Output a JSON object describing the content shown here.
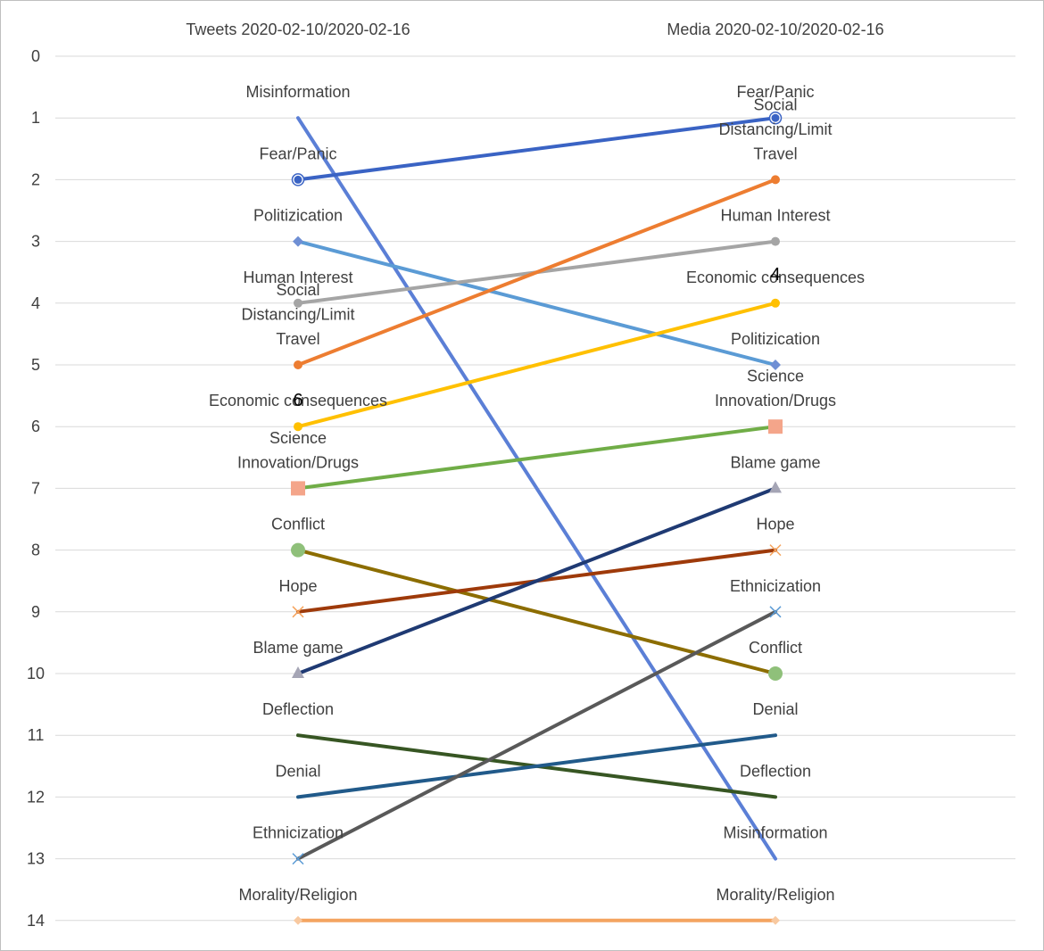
{
  "chart_data": {
    "type": "line",
    "x": [
      "Tweets 2020-02-10/2020-02-16",
      "Media 2020-02-10/2020-02-16"
    ],
    "y_ticks": [
      0,
      1,
      2,
      3,
      4,
      5,
      6,
      7,
      8,
      9,
      10,
      11,
      12,
      13,
      14
    ],
    "ylim": [
      0,
      14
    ],
    "y_reversed": true,
    "grid": true,
    "series": [
      {
        "name": "Misinformation",
        "values": [
          1,
          13
        ],
        "color": "#5b7fd6",
        "marker": "none"
      },
      {
        "name": "Fear/Panic",
        "values": [
          2,
          1
        ],
        "color": "#3a63c4",
        "marker": "circle-open"
      },
      {
        "name": "Politizication",
        "values": [
          3,
          5
        ],
        "color": "#5b9bd5",
        "marker": "diamond"
      },
      {
        "name": "Human Interest",
        "values": [
          4,
          3
        ],
        "color": "#a5a5a5",
        "marker": "circle"
      },
      {
        "name": "Social Distancing/Limit Travel",
        "values": [
          5,
          2
        ],
        "color": "#ed7d31",
        "marker": "circle"
      },
      {
        "name": "Economic consequences",
        "values": [
          6,
          4
        ],
        "color": "#ffc000",
        "marker": "circle"
      },
      {
        "name": "Science Innovation/Drugs",
        "values": [
          7,
          6
        ],
        "color": "#70ad47",
        "marker": "square"
      },
      {
        "name": "Conflict",
        "values": [
          8,
          10
        ],
        "color": "#8c6d00",
        "marker": "circle-big"
      },
      {
        "name": "Hope",
        "values": [
          9,
          8
        ],
        "color": "#9e3a0a",
        "marker": "x"
      },
      {
        "name": "Blame game",
        "values": [
          10,
          7
        ],
        "color": "#1f3a73",
        "marker": "triangle"
      },
      {
        "name": "Deflection",
        "values": [
          11,
          12
        ],
        "color": "#375623",
        "marker": "none"
      },
      {
        "name": "Denial",
        "values": [
          12,
          11
        ],
        "color": "#215a8a",
        "marker": "none"
      },
      {
        "name": "Ethnicization",
        "values": [
          13,
          9
        ],
        "color": "#595959",
        "marker": "x-blue"
      },
      {
        "name": "Morality/Religion",
        "values": [
          14,
          14
        ],
        "color": "#f4a460",
        "marker": "diamond-small"
      }
    ],
    "stray_labels": [
      "6",
      "4"
    ]
  }
}
